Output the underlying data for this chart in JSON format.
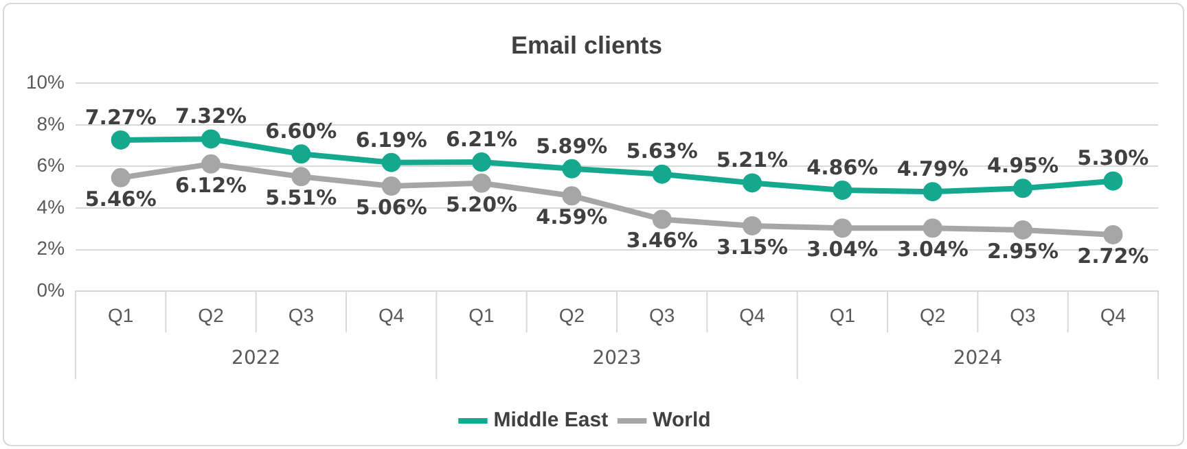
{
  "chart_data": {
    "type": "line",
    "title": "Email clients",
    "categories": [
      "Q1",
      "Q2",
      "Q3",
      "Q4",
      "Q1",
      "Q2",
      "Q3",
      "Q4",
      "Q1",
      "Q2",
      "Q3",
      "Q4"
    ],
    "annotations": [
      "2022",
      "2023",
      "2024"
    ],
    "series": [
      {
        "name": "Middle East",
        "color": "#14a88e",
        "values": [
          7.27,
          7.32,
          6.6,
          6.19,
          6.21,
          5.89,
          5.63,
          5.21,
          4.86,
          4.79,
          4.95,
          5.3
        ],
        "value_labels": [
          "7.27%",
          "7.32%",
          "6.60%",
          "6.19%",
          "6.21%",
          "5.89%",
          "5.63%",
          "5.21%",
          "4.86%",
          "4.79%",
          "4.95%",
          "5.30%"
        ]
      },
      {
        "name": "World",
        "color": "#a6a6a6",
        "values": [
          5.46,
          6.12,
          5.51,
          5.06,
          5.2,
          4.59,
          3.46,
          3.15,
          3.04,
          3.04,
          2.95,
          2.72
        ],
        "value_labels": [
          "5.46%",
          "6.12%",
          "5.51%",
          "5.06%",
          "5.20%",
          "4.59%",
          "3.46%",
          "3.15%",
          "3.04%",
          "3.04%",
          "2.95%",
          "2.72%"
        ]
      }
    ],
    "ylim": [
      0,
      10
    ],
    "yticks": [
      {
        "value": 0,
        "label": "0%"
      },
      {
        "value": 2,
        "label": "2%"
      },
      {
        "value": 4,
        "label": "4%"
      },
      {
        "value": 6,
        "label": "6%"
      },
      {
        "value": 8,
        "label": "8%"
      },
      {
        "value": 10,
        "label": "10%"
      }
    ],
    "grid": "y",
    "legend": "bottom",
    "marker": "circle",
    "line_style": "solid"
  }
}
